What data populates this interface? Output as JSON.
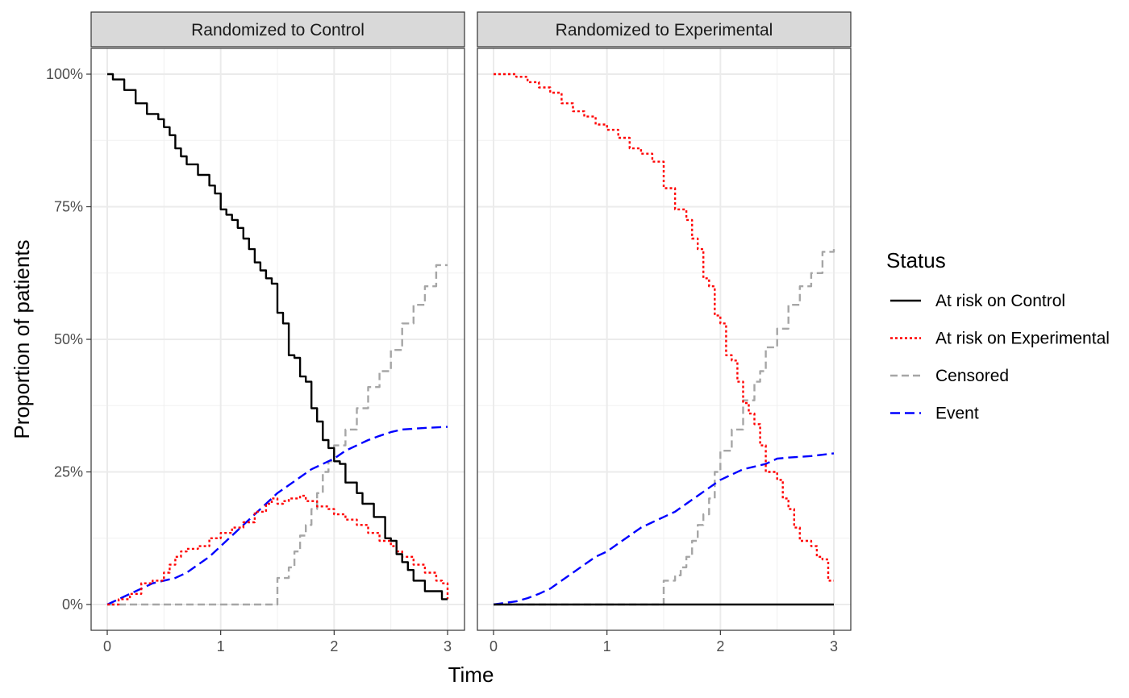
{
  "chart_data": {
    "type": "line",
    "xlabel": "Time",
    "ylabel": "Proportion of patients",
    "xlim": [
      0,
      3
    ],
    "ylim": [
      0,
      1
    ],
    "x_ticks": [
      0,
      1,
      2,
      3
    ],
    "x_tick_labels": [
      "0",
      "1",
      "2",
      "3"
    ],
    "y_ticks": [
      0,
      0.25,
      0.5,
      0.75,
      1
    ],
    "y_tick_labels": [
      "0%",
      "25%",
      "50%",
      "75%",
      "100%"
    ],
    "grid": true,
    "legend": {
      "title": "Status",
      "position": "right",
      "entries": [
        {
          "key": "at_risk_control",
          "label": "At risk on Control",
          "color": "#000000",
          "dash": "solid"
        },
        {
          "key": "at_risk_experimental",
          "label": "At risk on Experimental",
          "color": "#ff0000",
          "dash": "dotted"
        },
        {
          "key": "censored",
          "label": "Censored",
          "color": "#a6a6a6",
          "dash": "dashed"
        },
        {
          "key": "event",
          "label": "Event",
          "color": "#0000ff",
          "dash": "longdash"
        }
      ]
    },
    "panels": [
      {
        "title": "Randomized to Control",
        "series": [
          {
            "key": "at_risk_control",
            "step": true,
            "points": [
              [
                0,
                1.0
              ],
              [
                0.05,
                0.99
              ],
              [
                0.15,
                0.97
              ],
              [
                0.25,
                0.945
              ],
              [
                0.35,
                0.925
              ],
              [
                0.45,
                0.915
              ],
              [
                0.5,
                0.9
              ],
              [
                0.55,
                0.885
              ],
              [
                0.6,
                0.86
              ],
              [
                0.65,
                0.845
              ],
              [
                0.7,
                0.83
              ],
              [
                0.8,
                0.81
              ],
              [
                0.9,
                0.79
              ],
              [
                0.95,
                0.775
              ],
              [
                1.0,
                0.745
              ],
              [
                1.05,
                0.735
              ],
              [
                1.1,
                0.725
              ],
              [
                1.15,
                0.71
              ],
              [
                1.2,
                0.69
              ],
              [
                1.25,
                0.67
              ],
              [
                1.3,
                0.645
              ],
              [
                1.35,
                0.63
              ],
              [
                1.4,
                0.615
              ],
              [
                1.45,
                0.605
              ],
              [
                1.5,
                0.55
              ],
              [
                1.55,
                0.53
              ],
              [
                1.6,
                0.47
              ],
              [
                1.65,
                0.465
              ],
              [
                1.7,
                0.43
              ],
              [
                1.75,
                0.42
              ],
              [
                1.8,
                0.37
              ],
              [
                1.85,
                0.345
              ],
              [
                1.9,
                0.31
              ],
              [
                1.95,
                0.295
              ],
              [
                2.0,
                0.27
              ],
              [
                2.05,
                0.265
              ],
              [
                2.1,
                0.23
              ],
              [
                2.2,
                0.21
              ],
              [
                2.25,
                0.19
              ],
              [
                2.35,
                0.165
              ],
              [
                2.45,
                0.125
              ],
              [
                2.5,
                0.12
              ],
              [
                2.55,
                0.095
              ],
              [
                2.6,
                0.08
              ],
              [
                2.65,
                0.065
              ],
              [
                2.7,
                0.045
              ],
              [
                2.8,
                0.025
              ],
              [
                2.95,
                0.01
              ],
              [
                3.0,
                0.01
              ]
            ]
          },
          {
            "key": "at_risk_experimental",
            "step": true,
            "points": [
              [
                0,
                0
              ],
              [
                0.1,
                0.01
              ],
              [
                0.2,
                0.02
              ],
              [
                0.3,
                0.04
              ],
              [
                0.4,
                0.045
              ],
              [
                0.5,
                0.06
              ],
              [
                0.55,
                0.075
              ],
              [
                0.6,
                0.09
              ],
              [
                0.65,
                0.1
              ],
              [
                0.7,
                0.105
              ],
              [
                0.8,
                0.11
              ],
              [
                0.9,
                0.125
              ],
              [
                1.0,
                0.135
              ],
              [
                1.1,
                0.145
              ],
              [
                1.2,
                0.155
              ],
              [
                1.3,
                0.175
              ],
              [
                1.4,
                0.19
              ],
              [
                1.45,
                0.2
              ],
              [
                1.5,
                0.19
              ],
              [
                1.55,
                0.195
              ],
              [
                1.6,
                0.2
              ],
              [
                1.7,
                0.205
              ],
              [
                1.75,
                0.195
              ],
              [
                1.85,
                0.185
              ],
              [
                1.95,
                0.18
              ],
              [
                2.0,
                0.17
              ],
              [
                2.1,
                0.16
              ],
              [
                2.2,
                0.15
              ],
              [
                2.3,
                0.135
              ],
              [
                2.4,
                0.12
              ],
              [
                2.5,
                0.11
              ],
              [
                2.55,
                0.1
              ],
              [
                2.6,
                0.09
              ],
              [
                2.7,
                0.075
              ],
              [
                2.8,
                0.06
              ],
              [
                2.9,
                0.045
              ],
              [
                2.95,
                0.04
              ],
              [
                3.0,
                0.01
              ]
            ]
          },
          {
            "key": "censored",
            "step": true,
            "points": [
              [
                0,
                0
              ],
              [
                1.5,
                0
              ],
              [
                1.5,
                0.05
              ],
              [
                1.6,
                0.07
              ],
              [
                1.65,
                0.1
              ],
              [
                1.7,
                0.13
              ],
              [
                1.75,
                0.15
              ],
              [
                1.8,
                0.18
              ],
              [
                1.85,
                0.21
              ],
              [
                1.9,
                0.25
              ],
              [
                1.95,
                0.27
              ],
              [
                2.0,
                0.3
              ],
              [
                2.1,
                0.33
              ],
              [
                2.2,
                0.37
              ],
              [
                2.3,
                0.41
              ],
              [
                2.4,
                0.44
              ],
              [
                2.5,
                0.48
              ],
              [
                2.6,
                0.53
              ],
              [
                2.7,
                0.565
              ],
              [
                2.8,
                0.6
              ],
              [
                2.9,
                0.64
              ],
              [
                3.0,
                0.64
              ]
            ]
          },
          {
            "key": "event",
            "step": false,
            "points": [
              [
                0,
                0
              ],
              [
                0.1,
                0.01
              ],
              [
                0.2,
                0.02
              ],
              [
                0.3,
                0.03
              ],
              [
                0.4,
                0.04
              ],
              [
                0.5,
                0.045
              ],
              [
                0.6,
                0.05
              ],
              [
                0.7,
                0.06
              ],
              [
                0.8,
                0.075
              ],
              [
                0.9,
                0.09
              ],
              [
                1.0,
                0.11
              ],
              [
                1.1,
                0.13
              ],
              [
                1.2,
                0.15
              ],
              [
                1.3,
                0.17
              ],
              [
                1.4,
                0.19
              ],
              [
                1.5,
                0.21
              ],
              [
                1.6,
                0.225
              ],
              [
                1.7,
                0.24
              ],
              [
                1.8,
                0.255
              ],
              [
                1.9,
                0.265
              ],
              [
                2.0,
                0.275
              ],
              [
                2.1,
                0.29
              ],
              [
                2.2,
                0.3
              ],
              [
                2.3,
                0.31
              ],
              [
                2.4,
                0.318
              ],
              [
                2.5,
                0.325
              ],
              [
                2.6,
                0.33
              ],
              [
                2.8,
                0.333
              ],
              [
                3.0,
                0.335
              ]
            ]
          }
        ]
      },
      {
        "title": "Randomized to Experimental",
        "series": [
          {
            "key": "at_risk_control",
            "step": true,
            "points": [
              [
                0,
                0
              ],
              [
                3.0,
                0
              ]
            ]
          },
          {
            "key": "at_risk_experimental",
            "step": true,
            "points": [
              [
                0,
                1.0
              ],
              [
                0.2,
                0.995
              ],
              [
                0.3,
                0.985
              ],
              [
                0.4,
                0.975
              ],
              [
                0.5,
                0.965
              ],
              [
                0.6,
                0.945
              ],
              [
                0.7,
                0.93
              ],
              [
                0.8,
                0.92
              ],
              [
                0.9,
                0.905
              ],
              [
                1.0,
                0.895
              ],
              [
                1.1,
                0.88
              ],
              [
                1.2,
                0.86
              ],
              [
                1.3,
                0.85
              ],
              [
                1.4,
                0.835
              ],
              [
                1.5,
                0.785
              ],
              [
                1.6,
                0.745
              ],
              [
                1.7,
                0.725
              ],
              [
                1.75,
                0.69
              ],
              [
                1.8,
                0.67
              ],
              [
                1.85,
                0.615
              ],
              [
                1.9,
                0.6
              ],
              [
                1.95,
                0.545
              ],
              [
                2.0,
                0.53
              ],
              [
                2.05,
                0.47
              ],
              [
                2.1,
                0.46
              ],
              [
                2.15,
                0.42
              ],
              [
                2.2,
                0.38
              ],
              [
                2.25,
                0.36
              ],
              [
                2.3,
                0.34
              ],
              [
                2.35,
                0.3
              ],
              [
                2.4,
                0.25
              ],
              [
                2.5,
                0.235
              ],
              [
                2.55,
                0.2
              ],
              [
                2.6,
                0.18
              ],
              [
                2.65,
                0.145
              ],
              [
                2.7,
                0.12
              ],
              [
                2.8,
                0.11
              ],
              [
                2.85,
                0.09
              ],
              [
                2.9,
                0.085
              ],
              [
                2.95,
                0.045
              ],
              [
                3.0,
                0.045
              ]
            ]
          },
          {
            "key": "censored",
            "step": true,
            "points": [
              [
                0,
                0
              ],
              [
                1.5,
                0
              ],
              [
                1.5,
                0.045
              ],
              [
                1.6,
                0.055
              ],
              [
                1.65,
                0.07
              ],
              [
                1.7,
                0.09
              ],
              [
                1.75,
                0.12
              ],
              [
                1.8,
                0.15
              ],
              [
                1.85,
                0.17
              ],
              [
                1.9,
                0.2
              ],
              [
                1.95,
                0.25
              ],
              [
                2.0,
                0.29
              ],
              [
                2.1,
                0.33
              ],
              [
                2.2,
                0.385
              ],
              [
                2.3,
                0.42
              ],
              [
                2.35,
                0.44
              ],
              [
                2.4,
                0.485
              ],
              [
                2.5,
                0.52
              ],
              [
                2.6,
                0.565
              ],
              [
                2.7,
                0.6
              ],
              [
                2.8,
                0.625
              ],
              [
                2.9,
                0.665
              ],
              [
                3.0,
                0.67
              ]
            ]
          },
          {
            "key": "event",
            "step": false,
            "points": [
              [
                0,
                0
              ],
              [
                0.1,
                0.003
              ],
              [
                0.2,
                0.006
              ],
              [
                0.3,
                0.012
              ],
              [
                0.4,
                0.02
              ],
              [
                0.5,
                0.03
              ],
              [
                0.6,
                0.045
              ],
              [
                0.7,
                0.06
              ],
              [
                0.8,
                0.075
              ],
              [
                0.9,
                0.09
              ],
              [
                1.0,
                0.1
              ],
              [
                1.1,
                0.115
              ],
              [
                1.2,
                0.13
              ],
              [
                1.3,
                0.145
              ],
              [
                1.4,
                0.155
              ],
              [
                1.5,
                0.165
              ],
              [
                1.6,
                0.175
              ],
              [
                1.7,
                0.19
              ],
              [
                1.8,
                0.205
              ],
              [
                1.9,
                0.22
              ],
              [
                2.0,
                0.235
              ],
              [
                2.1,
                0.245
              ],
              [
                2.2,
                0.255
              ],
              [
                2.3,
                0.26
              ],
              [
                2.4,
                0.265
              ],
              [
                2.5,
                0.275
              ],
              [
                2.6,
                0.277
              ],
              [
                2.8,
                0.28
              ],
              [
                3.0,
                0.285
              ]
            ]
          }
        ]
      }
    ]
  }
}
